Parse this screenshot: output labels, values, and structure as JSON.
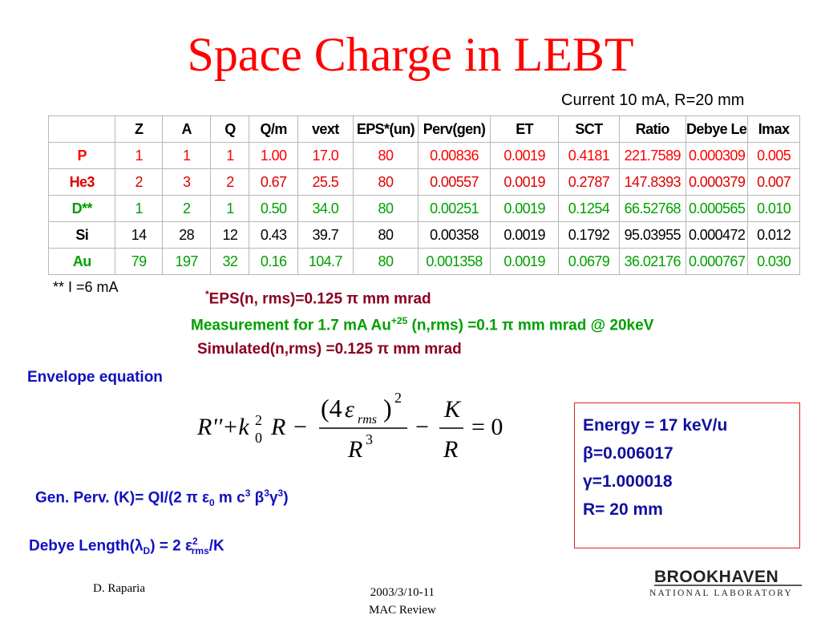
{
  "title": "Space Charge in LEBT",
  "current": "Current 10 mA, R=20 mm",
  "table": {
    "headers": [
      "",
      "Z",
      "A",
      "Q",
      "Q/m",
      "vext",
      "EPS*(un)",
      "Perv(gen)",
      "ET",
      "SCT",
      "Ratio",
      "Debye Len",
      "Imax"
    ],
    "rows": [
      {
        "color": "#ff0000",
        "cells": [
          "P",
          "1",
          "1",
          "1",
          "1.00",
          "17.0",
          "80",
          "0.00836",
          "0.0019",
          "0.4181",
          "221.7589",
          "0.000309",
          "0.005"
        ]
      },
      {
        "color": "#e00000",
        "cells": [
          "He3",
          "2",
          "3",
          "2",
          "0.67",
          "25.5",
          "80",
          "0.00557",
          "0.0019",
          "0.2787",
          "147.8393",
          "0.000379",
          "0.007"
        ]
      },
      {
        "color": "#00a000",
        "cells": [
          "D**",
          "1",
          "2",
          "1",
          "0.50",
          "34.0",
          "80",
          "0.00251",
          "0.0019",
          "0.1254",
          "66.52768",
          "0.000565",
          "0.010"
        ]
      },
      {
        "color": "#000000",
        "cells": [
          "Si",
          "14",
          "28",
          "12",
          "0.43",
          "39.7",
          "80",
          "0.00358",
          "0.0019",
          "0.1792",
          "95.03955",
          "0.000472",
          "0.012"
        ]
      },
      {
        "color": "#00a000",
        "cells": [
          "Au",
          "79",
          "197",
          "32",
          "0.16",
          "104.7",
          "80",
          "0.001358",
          "0.0019",
          "0.0679",
          "36.02176",
          "0.000767",
          "0.030"
        ]
      }
    ]
  },
  "note": "** I =6 mA",
  "eps": {
    "star": "*",
    "text": "EPS(n,  rms)=0.125 π mm mrad"
  },
  "measurement": {
    "pre": "Measurement for 1.7 mA Au",
    "sup": "+25",
    "post": " (n,rms) =0.1 π mm mrad @ 20keV"
  },
  "simulated": "Simulated(n,rms) =0.125 π mm mrad",
  "envelope_label": "Envelope equation",
  "equation": {
    "lhs": "R''+k",
    "k_sub": "0",
    "k_sup": "2",
    "R": "R",
    "minus": "−",
    "num_open": "(4",
    "eps": "ε",
    "eps_sub": "rms",
    "num_close": ")",
    "num_sup": "2",
    "den": "R",
    "den_sup": "3",
    "K": "K",
    "eq": "= 0"
  },
  "box": {
    "energy": "Energy = 17 keV/u",
    "beta": "β=0.006017",
    "gamma": "γ=1.000018",
    "radius": "R= 20 mm"
  },
  "genperv": {
    "a": "Gen. Perv. (K)= QI/(2 π ε",
    "a_sub": "0",
    "b": " m c",
    "b_sup": "3",
    "c": " β",
    "c_sup": "3",
    "d": "γ",
    "d_sup": "3",
    "e": ")"
  },
  "debye": {
    "a": "Debye Length(λ",
    "a_sub": "D",
    "b": ") = 2 ε",
    "b_sup": "2",
    "b_sub": "rms",
    "c": "/K"
  },
  "footer": {
    "author": "D. Raparia",
    "date": "2003/3/10-11",
    "event": "MAC Review"
  },
  "logo": {
    "top": "BROOKHAVEN",
    "bottom": "NATIONAL LABORATORY"
  },
  "colors": {
    "title": "#ff0000",
    "blue": "#1010c0",
    "darkred": "#8b0020",
    "green": "#00a000"
  }
}
